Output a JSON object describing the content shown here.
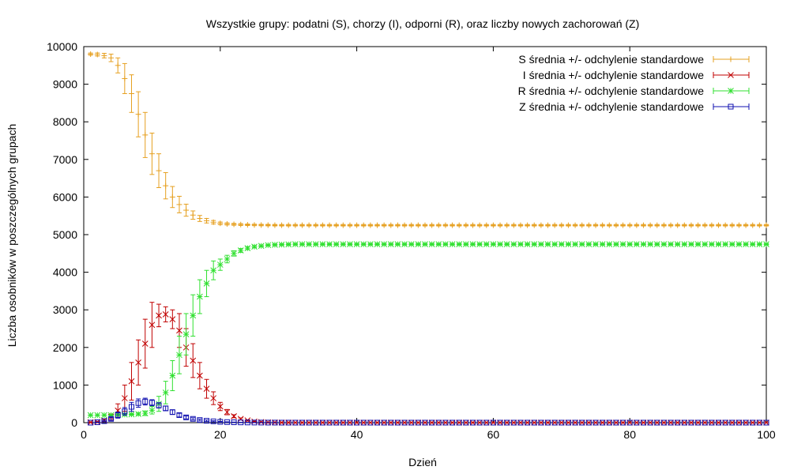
{
  "chart_data": {
    "type": "line",
    "title": "Wszystkie grupy: podatni (S), chorzy (I), odporni (R), oraz liczby nowych zachorowań (Z)",
    "xlabel": "Dzień",
    "ylabel": "Liczba osobników w poszczególnych grupach",
    "xlim": [
      0,
      100
    ],
    "ylim": [
      0,
      10000
    ],
    "x_ticks": [
      "0",
      "20",
      "40",
      "60",
      "80",
      "100"
    ],
    "y_ticks": [
      "0",
      "1000",
      "2000",
      "3000",
      "4000",
      "5000",
      "6000",
      "7000",
      "8000",
      "9000",
      "10000"
    ],
    "grid": false,
    "legend_position": "top-right",
    "series": [
      {
        "name": "S średnia +/- odchylenie standardowe",
        "color": "#e6a020",
        "marker": "plus",
        "x": [
          1,
          2,
          3,
          4,
          5,
          6,
          7,
          8,
          9,
          10,
          11,
          12,
          13,
          14,
          15,
          16,
          17,
          18,
          19,
          20,
          21,
          22,
          23,
          24,
          25,
          26,
          27,
          28,
          29,
          30,
          31,
          32,
          33,
          34,
          35,
          36,
          37,
          38,
          39,
          40,
          41,
          42,
          43,
          44,
          45,
          46,
          47,
          48,
          49,
          50,
          51,
          52,
          53,
          54,
          55,
          56,
          57,
          58,
          59,
          60,
          61,
          62,
          63,
          64,
          65,
          66,
          67,
          68,
          69,
          70,
          71,
          72,
          73,
          74,
          75,
          76,
          77,
          78,
          79,
          80,
          81,
          82,
          83,
          84,
          85,
          86,
          87,
          88,
          89,
          90,
          91,
          92,
          93,
          94,
          95,
          96,
          97,
          98,
          99,
          100
        ],
        "y": [
          9800,
          9790,
          9760,
          9700,
          9500,
          9150,
          8750,
          8200,
          7650,
          7150,
          6700,
          6300,
          6000,
          5800,
          5650,
          5520,
          5430,
          5370,
          5330,
          5300,
          5285,
          5275,
          5268,
          5262,
          5258,
          5255,
          5253,
          5251,
          5250,
          5250,
          5250,
          5250,
          5250,
          5250,
          5250,
          5250,
          5250,
          5250,
          5250,
          5250,
          5250,
          5250,
          5250,
          5250,
          5250,
          5250,
          5250,
          5250,
          5250,
          5250,
          5250,
          5250,
          5250,
          5250,
          5250,
          5250,
          5250,
          5250,
          5250,
          5250,
          5250,
          5250,
          5250,
          5250,
          5250,
          5250,
          5250,
          5250,
          5250,
          5250,
          5250,
          5250,
          5250,
          5250,
          5250,
          5250,
          5250,
          5250,
          5250,
          5250,
          5250,
          5250,
          5250,
          5250,
          5250,
          5250,
          5250,
          5250,
          5250,
          5250,
          5250,
          5250,
          5250,
          5250,
          5250,
          5250,
          5250,
          5250,
          5250,
          5250
        ],
        "err": [
          30,
          40,
          60,
          100,
          200,
          400,
          500,
          600,
          600,
          550,
          450,
          350,
          280,
          220,
          160,
          110,
          80,
          60,
          45,
          35,
          30,
          25,
          25,
          20,
          20,
          20,
          20,
          20,
          20,
          20,
          20,
          20,
          20,
          20,
          20,
          20,
          20,
          20,
          20,
          20,
          20,
          20,
          20,
          20,
          20,
          20,
          20,
          20,
          20,
          20,
          20,
          20,
          20,
          20,
          20,
          20,
          20,
          20,
          20,
          20,
          20,
          20,
          20,
          20,
          20,
          20,
          20,
          20,
          20,
          20,
          20,
          20,
          20,
          20,
          20,
          20,
          20,
          20,
          20,
          20,
          20,
          20,
          20,
          20,
          20,
          20,
          20,
          20,
          20,
          20,
          20,
          20,
          20,
          20,
          20,
          20,
          20,
          20,
          20,
          20
        ]
      },
      {
        "name": "I średnia +/- odchylenie standardowe",
        "color": "#c00000",
        "marker": "cross",
        "x": [
          1,
          2,
          3,
          4,
          5,
          6,
          7,
          8,
          9,
          10,
          11,
          12,
          13,
          14,
          15,
          16,
          17,
          18,
          19,
          20,
          21,
          22,
          23,
          24,
          25,
          26,
          27,
          28,
          29,
          30,
          31,
          32,
          33,
          34,
          35,
          36,
          37,
          38,
          39,
          40,
          41,
          42,
          43,
          44,
          45,
          46,
          47,
          48,
          49,
          50,
          51,
          52,
          53,
          54,
          55,
          56,
          57,
          58,
          59,
          60,
          61,
          62,
          63,
          64,
          65,
          66,
          67,
          68,
          69,
          70,
          71,
          72,
          73,
          74,
          75,
          76,
          77,
          78,
          79,
          80,
          81,
          82,
          83,
          84,
          85,
          86,
          87,
          88,
          89,
          90,
          91,
          92,
          93,
          94,
          95,
          96,
          97,
          98,
          99,
          100
        ],
        "y": [
          10,
          20,
          60,
          150,
          320,
          650,
          1100,
          1600,
          2100,
          2600,
          2850,
          2880,
          2750,
          2450,
          2000,
          1650,
          1250,
          900,
          650,
          430,
          280,
          170,
          100,
          60,
          30,
          15,
          8,
          5,
          3,
          2,
          1,
          1,
          1,
          1,
          1,
          1,
          1,
          1,
          1,
          1,
          1,
          1,
          1,
          1,
          1,
          1,
          1,
          1,
          1,
          1,
          1,
          1,
          1,
          1,
          1,
          1,
          1,
          1,
          1,
          1,
          1,
          1,
          1,
          1,
          1,
          1,
          1,
          1,
          1,
          1,
          1,
          1,
          1,
          1,
          1,
          1,
          1,
          1,
          1,
          1,
          1,
          1,
          1,
          1,
          1,
          1,
          1,
          1,
          1,
          1,
          1,
          1,
          1,
          1,
          1,
          1,
          1,
          1,
          1,
          1
        ],
        "err": [
          5,
          10,
          30,
          80,
          180,
          350,
          500,
          600,
          650,
          600,
          300,
          200,
          250,
          450,
          500,
          450,
          350,
          250,
          170,
          110,
          70,
          40,
          25,
          15,
          8,
          5,
          3,
          2,
          1,
          1,
          1,
          1,
          1,
          1,
          1,
          1,
          1,
          1,
          1,
          1,
          1,
          1,
          1,
          1,
          1,
          1,
          1,
          1,
          1,
          1,
          1,
          1,
          1,
          1,
          1,
          1,
          1,
          1,
          1,
          1,
          1,
          1,
          1,
          1,
          1,
          1,
          1,
          1,
          1,
          1,
          1,
          1,
          1,
          1,
          1,
          1,
          1,
          1,
          1,
          1,
          1,
          1,
          1,
          1,
          1,
          1,
          1,
          1,
          1,
          1,
          1,
          1,
          1,
          1,
          1,
          1,
          1,
          1,
          1,
          1
        ]
      },
      {
        "name": "R średnia +/- odchylenie standardowe",
        "color": "#30e030",
        "marker": "star",
        "x": [
          1,
          2,
          3,
          4,
          5,
          6,
          7,
          8,
          9,
          10,
          11,
          12,
          13,
          14,
          15,
          16,
          17,
          18,
          19,
          20,
          21,
          22,
          23,
          24,
          25,
          26,
          27,
          28,
          29,
          30,
          31,
          32,
          33,
          34,
          35,
          36,
          37,
          38,
          39,
          40,
          41,
          42,
          43,
          44,
          45,
          46,
          47,
          48,
          49,
          50,
          51,
          52,
          53,
          54,
          55,
          56,
          57,
          58,
          59,
          60,
          61,
          62,
          63,
          64,
          65,
          66,
          67,
          68,
          69,
          70,
          71,
          72,
          73,
          74,
          75,
          76,
          77,
          78,
          79,
          80,
          81,
          82,
          83,
          84,
          85,
          86,
          87,
          88,
          89,
          90,
          91,
          92,
          93,
          94,
          95,
          96,
          97,
          98,
          99,
          100
        ],
        "y": [
          200,
          200,
          200,
          200,
          210,
          215,
          220,
          230,
          250,
          330,
          500,
          800,
          1250,
          1800,
          2350,
          2850,
          3350,
          3700,
          4050,
          4200,
          4350,
          4500,
          4580,
          4640,
          4680,
          4700,
          4720,
          4730,
          4735,
          4740,
          4745,
          4745,
          4745,
          4745,
          4745,
          4745,
          4745,
          4745,
          4745,
          4745,
          4745,
          4745,
          4745,
          4745,
          4745,
          4745,
          4745,
          4745,
          4745,
          4745,
          4745,
          4745,
          4745,
          4745,
          4745,
          4745,
          4745,
          4745,
          4745,
          4745,
          4745,
          4745,
          4745,
          4745,
          4745,
          4745,
          4745,
          4745,
          4745,
          4745,
          4745,
          4745,
          4745,
          4745,
          4745,
          4745,
          4745,
          4745,
          4745,
          4745,
          4745,
          4745,
          4745,
          4745,
          4745,
          4745,
          4745,
          4745,
          4745,
          4745,
          4745,
          4745,
          4745,
          4745,
          4745,
          4745,
          4745,
          4745,
          4745,
          4745
        ],
        "err": [
          5,
          5,
          5,
          10,
          10,
          15,
          20,
          30,
          60,
          100,
          200,
          300,
          400,
          500,
          550,
          550,
          450,
          350,
          250,
          150,
          100,
          70,
          50,
          40,
          30,
          25,
          20,
          20,
          20,
          20,
          20,
          20,
          20,
          20,
          20,
          20,
          20,
          20,
          20,
          20,
          20,
          20,
          20,
          20,
          20,
          20,
          20,
          20,
          20,
          20,
          20,
          20,
          20,
          20,
          20,
          20,
          20,
          20,
          20,
          20,
          20,
          20,
          20,
          20,
          20,
          20,
          20,
          20,
          20,
          20,
          20,
          20,
          20,
          20,
          20,
          20,
          20,
          20,
          20,
          20,
          20,
          20,
          20,
          20,
          20,
          20,
          20,
          20,
          20,
          20,
          20,
          20,
          20,
          20,
          20,
          20,
          20,
          20,
          20,
          20
        ]
      },
      {
        "name": "Z średnia +/- odchylenie standardowe",
        "color": "#1010b0",
        "marker": "square",
        "x": [
          1,
          2,
          3,
          4,
          5,
          6,
          7,
          8,
          9,
          10,
          11,
          12,
          13,
          14,
          15,
          16,
          17,
          18,
          19,
          20,
          21,
          22,
          23,
          24,
          25,
          26,
          27,
          28,
          29,
          30,
          31,
          32,
          33,
          34,
          35,
          36,
          37,
          38,
          39,
          40,
          41,
          42,
          43,
          44,
          45,
          46,
          47,
          48,
          49,
          50,
          51,
          52,
          53,
          54,
          55,
          56,
          57,
          58,
          59,
          60,
          61,
          62,
          63,
          64,
          65,
          66,
          67,
          68,
          69,
          70,
          71,
          72,
          73,
          74,
          75,
          76,
          77,
          78,
          79,
          80,
          81,
          82,
          83,
          84,
          85,
          86,
          87,
          88,
          89,
          90,
          91,
          92,
          93,
          94,
          95,
          96,
          97,
          98,
          99,
          100
        ],
        "y": [
          0,
          10,
          40,
          100,
          200,
          300,
          420,
          520,
          560,
          530,
          460,
          380,
          280,
          200,
          140,
          100,
          70,
          50,
          35,
          22,
          15,
          10,
          7,
          5,
          3,
          2,
          1,
          1,
          0,
          0,
          0,
          0,
          0,
          0,
          0,
          0,
          0,
          0,
          0,
          0,
          0,
          0,
          0,
          0,
          0,
          0,
          0,
          0,
          0,
          0,
          0,
          0,
          0,
          0,
          0,
          0,
          0,
          0,
          0,
          0,
          0,
          0,
          0,
          0,
          0,
          0,
          0,
          0,
          0,
          0,
          0,
          0,
          0,
          0,
          0,
          0,
          0,
          0,
          0,
          0,
          0,
          0,
          0,
          0,
          0,
          0,
          0,
          0,
          0,
          0,
          0,
          0,
          0,
          0,
          0,
          0,
          0,
          0,
          0,
          0
        ],
        "err": [
          0,
          5,
          15,
          40,
          80,
          100,
          120,
          110,
          90,
          80,
          70,
          60,
          60,
          50,
          40,
          30,
          25,
          20,
          15,
          10,
          8,
          5,
          3,
          2,
          2,
          1,
          1,
          1,
          0,
          0,
          0,
          0,
          0,
          0,
          0,
          0,
          0,
          0,
          0,
          0,
          0,
          0,
          0,
          0,
          0,
          0,
          0,
          0,
          0,
          0,
          0,
          0,
          0,
          0,
          0,
          0,
          0,
          0,
          0,
          0,
          0,
          0,
          0,
          0,
          0,
          0,
          0,
          0,
          0,
          0,
          0,
          0,
          0,
          0,
          0,
          0,
          0,
          0,
          0,
          0,
          0,
          0,
          0,
          0,
          0,
          0,
          0,
          0,
          0,
          0,
          0,
          0,
          0,
          0,
          0,
          0,
          0,
          0,
          0,
          0
        ]
      }
    ]
  }
}
